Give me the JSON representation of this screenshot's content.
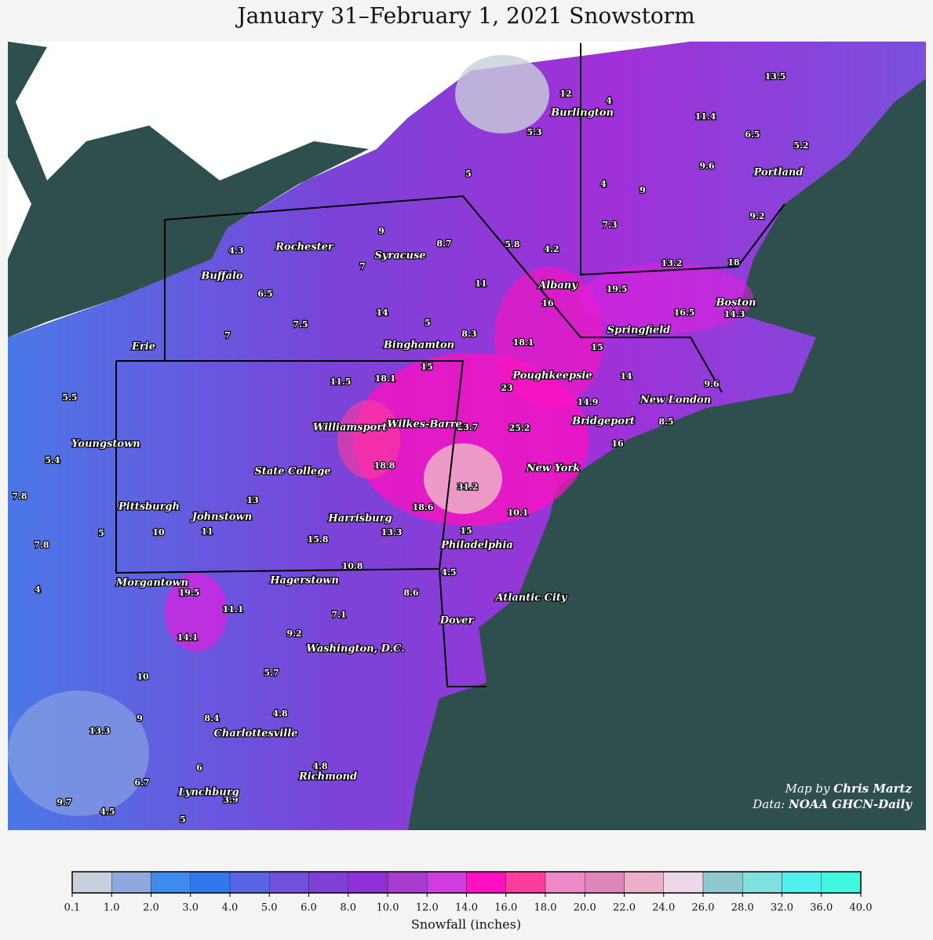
{
  "title": "January 31–February 1, 2021 Snowstorm",
  "cities": [
    "Burlington",
    "Portland",
    "Rochester",
    "Syracuse",
    "Buffalo",
    "Albany",
    "Boston",
    "Springfield",
    "Erie",
    "Binghamton",
    "Poughkeepsie",
    "New London",
    "Bridgeport",
    "Williamsport",
    "Wilkes-Barre",
    "Youngstown",
    "New York",
    "State College",
    "Pittsburgh",
    "Johnstown",
    "Harrisburg",
    "Philadelphia",
    "Morgantown",
    "Hagerstown",
    "Atlantic City",
    "Dover",
    "Washington, D.C.",
    "Charlottesville",
    "Richmond",
    "Lynchburg"
  ],
  "snowfall_values": [
    13.5,
    12,
    4,
    11.4,
    5.3,
    6.5,
    5.2,
    9.6,
    5,
    4,
    9,
    9.2,
    7.3,
    9,
    8.7,
    5.8,
    4.2,
    4.3,
    13.2,
    18,
    7,
    11,
    19.5,
    6.5,
    16,
    16.5,
    14.3,
    14,
    5,
    7.5,
    7,
    8.3,
    18.1,
    15,
    15,
    14,
    18.1,
    11.5,
    9.6,
    23,
    5.5,
    14.9,
    8.5,
    23.7,
    25.2,
    16,
    5.4,
    18.8,
    31.2,
    13,
    7.8,
    18.6,
    10.1,
    10,
    11,
    5,
    15,
    13.3,
    15.8,
    7.8,
    10.8,
    4.5,
    19.5,
    4,
    8.6,
    11.1,
    7.1,
    9.2,
    14.1,
    5.7,
    10,
    8.4,
    4.8,
    9,
    13.3,
    6,
    4.8,
    6.7,
    9.7,
    3.9,
    4.5,
    5
  ],
  "credit": {
    "map_prefix": "Map by",
    "map_author": "Chris Martz",
    "data_prefix": "Data:",
    "data_source": "NOAA GHCN-Daily"
  },
  "legend": {
    "label": "Snowfall (inches)",
    "ticks": [
      "0.1",
      "1.0",
      "2.0",
      "3.0",
      "4.0",
      "5.0",
      "6.0",
      "8.0",
      "10.0",
      "12.0",
      "14.0",
      "16.0",
      "18.0",
      "20.0",
      "22.0",
      "24.0",
      "26.0",
      "28.0",
      "32.0",
      "36.0",
      "40.0"
    ],
    "colors": [
      "#c8d0dc",
      "#8fa8e0",
      "#3c8cf0",
      "#2f78f0",
      "#5a64e6",
      "#7050dc",
      "#8040d8",
      "#9030d8",
      "#a83cd0",
      "#d03ce0",
      "#ff10c0",
      "#ff3c9c",
      "#ee88c8",
      "#dd88b8",
      "#eeb0c8",
      "#ecd8e8",
      "#90c8d0",
      "#80e0e0",
      "#50f0f0",
      "#40f8e0"
    ]
  }
}
